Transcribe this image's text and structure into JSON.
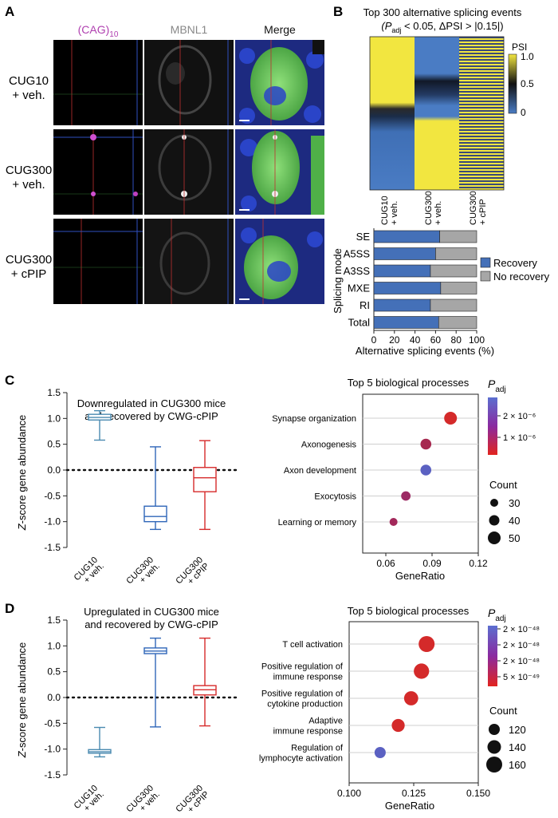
{
  "panels": {
    "A": "A",
    "B": "B",
    "C": "C",
    "D": "D"
  },
  "panel_a": {
    "col_headers": {
      "cag": "(CAG)",
      "cag_sub": "10",
      "mbnl1": "MBNL1",
      "merge": "Merge"
    },
    "rows": [
      {
        "line1": "CUG10",
        "line2": "+ veh."
      },
      {
        "line1": "CUG300",
        "line2": "+ veh."
      },
      {
        "line1": "CUG300",
        "line2": "+ cPIP"
      }
    ],
    "colors": {
      "cag": "#b040b0",
      "mbnl1": "#888888",
      "cell": "#6fcf5f",
      "nuclei": "#2a44c8"
    }
  },
  "panel_b": {
    "title1": "Top 300 alternative splicing events",
    "title2_pre": "(P",
    "title2_sub": "adj",
    "title2_post": " < 0.05, ΔPSI > |0.15|)",
    "heatmap_cols": [
      {
        "line1": "CUG10",
        "line2": "+ veh."
      },
      {
        "line1": "CUG300",
        "line2": "+ veh."
      },
      {
        "line1": "CUG300",
        "line2": "+ cPIP"
      }
    ],
    "colorbar": {
      "label": "PSI",
      "ticks": [
        "1.0",
        "0.5",
        "0"
      ]
    },
    "colors": {
      "high": "#f2e640",
      "mid": "#111111",
      "low": "#4a7cc4"
    }
  },
  "chart_data": [
    {
      "type": "bar",
      "orientation": "horizontal-stacked",
      "categories": [
        "SE",
        "A5SS",
        "A3SS",
        "MXE",
        "RI",
        "Total"
      ],
      "series": [
        {
          "name": "Recovery",
          "values": [
            64,
            60,
            55,
            65,
            55,
            63
          ],
          "color": "#4470b8"
        },
        {
          "name": "No recovery",
          "values": [
            36,
            40,
            45,
            35,
            45,
            37
          ],
          "color": "#a6a6a6"
        }
      ],
      "xticks": [
        "0",
        "20",
        "40",
        "60",
        "80",
        "100"
      ],
      "xlim": [
        0,
        100
      ],
      "xlabel": "Alternative splicing events (%)",
      "ylabel": "Splicing mode",
      "legend": "right"
    },
    {
      "type": "box",
      "title1": "Downregulated in CUG300 mice",
      "title2": "and recovered by CWG-cPIP",
      "ylabel_italic": "Z",
      "ylabel_rest": "-score gene abundance",
      "ylim": [
        -1.5,
        1.5
      ],
      "yticks": [
        "1.5",
        "1.0",
        "0.5",
        "0.0",
        "-0.5",
        "-1.0",
        "-1.5"
      ],
      "groups": [
        {
          "line1": "CUG10",
          "line2": "+ veh.",
          "color": "#4a8ab0",
          "min": 0.58,
          "q1": 0.97,
          "median": 1.02,
          "q3": 1.08,
          "max": 1.15
        },
        {
          "line1": "CUG300",
          "line2": "+ veh.",
          "color": "#2f66b8",
          "min": -1.15,
          "q1": -1.0,
          "median": -0.9,
          "q3": -0.7,
          "max": 0.45
        },
        {
          "line1": "CUG300",
          "line2": "+ cPIP",
          "color": "#d62a2a",
          "min": -1.15,
          "q1": -0.42,
          "median": -0.15,
          "q3": 0.05,
          "max": 0.57
        }
      ]
    },
    {
      "type": "scatter",
      "title": "Top 5 biological processes",
      "xlabel": "GeneRatio",
      "xlim": [
        0.045,
        0.12
      ],
      "xticks": [
        0.06,
        0.09,
        0.12
      ],
      "xtick_labels": [
        "0.06",
        "0.09",
        "0.12"
      ],
      "terms": [
        {
          "label": [
            "Synapse organization"
          ],
          "x": 0.102,
          "count": 50,
          "padj_color": "#d42a2a"
        },
        {
          "label": [
            "Axonogenesis"
          ],
          "x": 0.086,
          "count": 42,
          "padj_color": "#a6284f"
        },
        {
          "label": [
            "Axon development"
          ],
          "x": 0.086,
          "count": 42,
          "padj_color": "#5b61c2"
        },
        {
          "label": [
            "Exocytosis"
          ],
          "x": 0.073,
          "count": 36,
          "padj_color": "#9c2a64"
        },
        {
          "label": [
            "Learning or memory"
          ],
          "x": 0.065,
          "count": 30,
          "padj_color": "#a2285a"
        }
      ],
      "padj_label": {
        "p": "P",
        "sub": "adj"
      },
      "padj_ticks": [
        "2 × 10⁻⁶",
        "1 × 10⁻⁶"
      ],
      "count_label": "Count",
      "count_legend": [
        "30",
        "40",
        "50"
      ]
    },
    {
      "type": "box",
      "title1": "Upregulated in CUG300 mice",
      "title2": "and recovered by CWG-cPIP",
      "ylabel_italic": "Z",
      "ylabel_rest": "-score gene abundance",
      "ylim": [
        -1.5,
        1.5
      ],
      "yticks": [
        "1.5",
        "1.0",
        "0.5",
        "0.0",
        "-0.5",
        "-1.0",
        "-1.5"
      ],
      "groups": [
        {
          "line1": "CUG10",
          "line2": "+ veh.",
          "color": "#4a8ab0",
          "min": -1.15,
          "q1": -1.08,
          "median": -1.05,
          "q3": -1.01,
          "max": -0.58
        },
        {
          "line1": "CUG300",
          "line2": "+ veh.",
          "color": "#2f66b8",
          "min": -0.57,
          "q1": 0.85,
          "median": 0.9,
          "q3": 0.96,
          "max": 1.15
        },
        {
          "line1": "CUG300",
          "line2": "+ cPIP",
          "color": "#d62a2a",
          "min": -0.55,
          "q1": 0.05,
          "median": 0.15,
          "q3": 0.23,
          "max": 1.15
        }
      ]
    },
    {
      "type": "scatter",
      "title": "Top 5 biological processes",
      "xlabel": "GeneRatio",
      "xlim": [
        0.1,
        0.15
      ],
      "xticks": [
        0.1,
        0.125,
        0.15
      ],
      "xtick_labels": [
        "0.100",
        "0.125",
        "0.150"
      ],
      "terms": [
        {
          "label": [
            "T cell activation"
          ],
          "x": 0.13,
          "count": 160,
          "padj_color": "#d42a2a"
        },
        {
          "label": [
            "Positive regulation of",
            "immune response"
          ],
          "x": 0.128,
          "count": 155,
          "padj_color": "#d42a2a"
        },
        {
          "label": [
            "Positive regulation of",
            "cytokine production"
          ],
          "x": 0.124,
          "count": 145,
          "padj_color": "#d42a2a"
        },
        {
          "label": [
            "Adaptive",
            "immune response"
          ],
          "x": 0.119,
          "count": 135,
          "padj_color": "#d42a2a"
        },
        {
          "label": [
            "Regulation of",
            "lymphocyte activation"
          ],
          "x": 0.112,
          "count": 120,
          "padj_color": "#5b61c2"
        }
      ],
      "padj_label": {
        "p": "P",
        "sub": "adj"
      },
      "padj_ticks": [
        "2 × 10⁻⁴⁸",
        "2 × 10⁻⁴⁸",
        "2 × 10⁻⁴⁸",
        "5 × 10⁻⁴⁹"
      ],
      "count_label": "Count",
      "count_legend": [
        "120",
        "140",
        "160"
      ]
    }
  ]
}
